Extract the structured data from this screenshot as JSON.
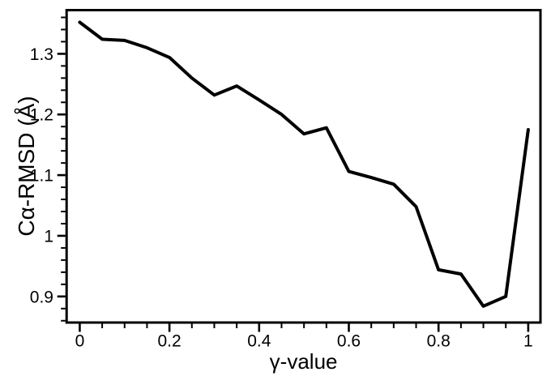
{
  "figure": {
    "background": "#ffffff",
    "line_color": "#000000",
    "axis_color": "#000000"
  },
  "chart_data": {
    "type": "line",
    "title": "",
    "xlabel": "γ-value",
    "ylabel": "Cα-RMSD (Å)",
    "x": [
      0,
      0.05,
      0.1,
      0.15,
      0.2,
      0.25,
      0.3,
      0.35,
      0.4,
      0.45,
      0.5,
      0.55,
      0.6,
      0.65,
      0.7,
      0.75,
      0.8,
      0.85,
      0.9,
      0.95,
      1
    ],
    "y": [
      1.352,
      1.324,
      1.322,
      1.31,
      1.294,
      1.26,
      1.232,
      1.247,
      1.224,
      1.2,
      1.168,
      1.178,
      1.106,
      1.096,
      1.085,
      1.048,
      0.944,
      0.937,
      0.884,
      0.9,
      1.175
    ],
    "xlim": [
      -0.032,
      1.03
    ],
    "ylim": [
      0.855,
      1.374
    ],
    "x_ticks": {
      "values": [
        0,
        0.2,
        0.4,
        0.6,
        0.8,
        1
      ],
      "labels": [
        "0",
        "0.2",
        "0.4",
        "0.6",
        "0.8",
        "1"
      ]
    },
    "y_ticks": {
      "values": [
        0.9,
        1,
        1.1,
        1.2,
        1.3
      ],
      "labels": [
        "0.9",
        "1",
        "1.1",
        "1.2",
        "1.3"
      ]
    },
    "x_minor_step": 0.05,
    "y_minor_step": 0.02,
    "grid": false,
    "legend": "none"
  }
}
